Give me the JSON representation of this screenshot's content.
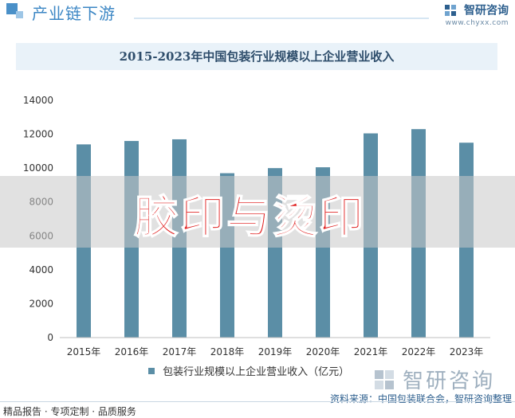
{
  "header": {
    "section_title": "产业链下游",
    "brand_name": "智研咨询",
    "brand_url": "www.chyxx.com"
  },
  "overlay": {
    "text": "胶印与烫印"
  },
  "brand_secondary": {
    "name": "智研咨询"
  },
  "footer": {
    "left_text": "精品报告 · 专项定制 · 品质服务",
    "source_text": "资料来源：中国包装联合会，智研咨询整理"
  },
  "colors": {
    "bar": "#5b8ea6",
    "accent": "#3b86c4",
    "overlay_text": "#e02020"
  },
  "chart_data": {
    "type": "bar",
    "title": "2015-2023年中国包装行业规模以上企业营业收入",
    "categories": [
      "2015年",
      "2016年",
      "2017年",
      "2018年",
      "2019年",
      "2020年",
      "2021年",
      "2022年",
      "2023年"
    ],
    "series": [
      {
        "name": "包装行业规模以上企业营业收入（亿元）",
        "values": [
          11400,
          11600,
          11700,
          9700,
          10000,
          10050,
          12050,
          12300,
          11500
        ]
      }
    ],
    "ylim": [
      0,
      14000
    ],
    "yticks": [
      0,
      2000,
      4000,
      6000,
      8000,
      10000,
      12000,
      14000
    ],
    "grid": false,
    "legend": "bottom"
  }
}
